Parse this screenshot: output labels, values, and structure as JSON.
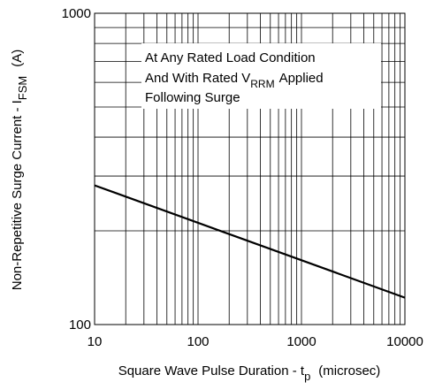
{
  "chart_data": {
    "type": "line",
    "xscale": "log",
    "yscale": "log",
    "xlim": [
      10,
      10000
    ],
    "ylim": [
      100,
      1000
    ],
    "grid": true,
    "xticks": [
      {
        "value": 10,
        "label": "10"
      },
      {
        "value": 100,
        "label": "100"
      },
      {
        "value": 1000,
        "label": "1000"
      },
      {
        "value": 10000,
        "label": "10000"
      }
    ],
    "yticks": [
      {
        "value": 100,
        "label": "100"
      },
      {
        "value": 1000,
        "label": "1000"
      }
    ],
    "xlabel": {
      "main": "Square Wave Pulse Duration - t",
      "sub": "p",
      "tail": "(microsec)"
    },
    "ylabel": {
      "main": "Non-Repetitive Surge Current - I",
      "sub": "FSM",
      "tail": "(A)"
    },
    "annotation": {
      "line1": "At Any Rated Load Condition",
      "line2_pre": "And With Rated V",
      "line2_sub": "RRM",
      "line2_post": "Applied",
      "line3": "Following Surge"
    },
    "series": [
      {
        "x": [
          10,
          10000
        ],
        "y": [
          280,
          122
        ]
      }
    ]
  }
}
